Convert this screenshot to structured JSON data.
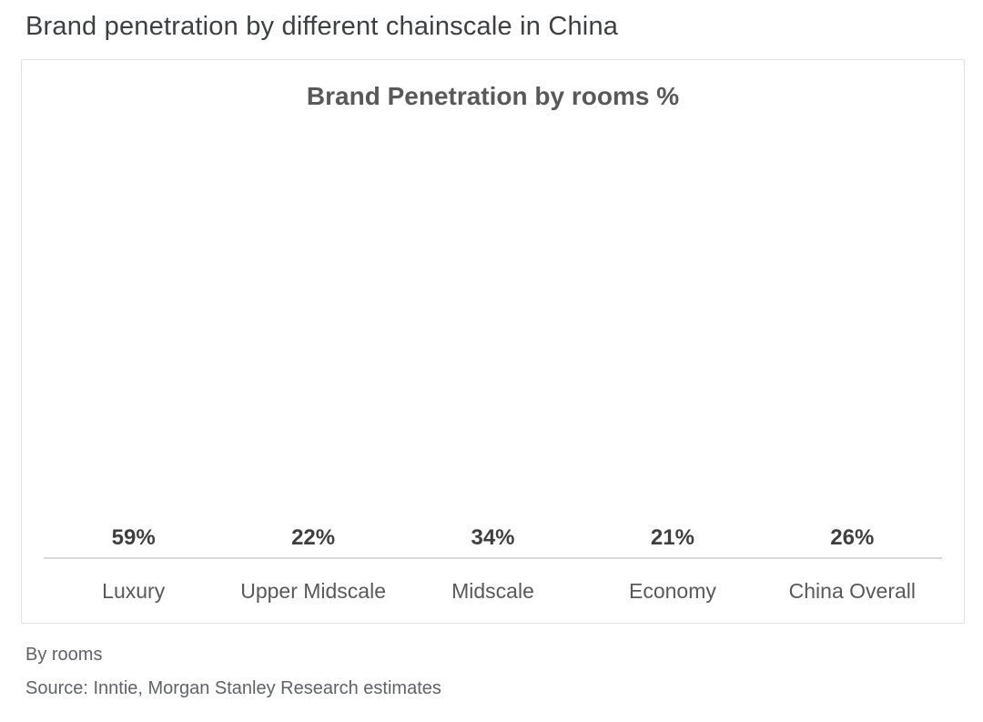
{
  "page": {
    "title": "Brand penetration by different chainscale in China"
  },
  "chart_data": {
    "type": "bar",
    "title": "Brand Penetration by rooms %",
    "categories": [
      "Luxury",
      "Upper Midscale",
      "Midscale",
      "Economy",
      "China Overall"
    ],
    "values": [
      59,
      22,
      34,
      21,
      26
    ],
    "value_labels": [
      "59%",
      "22%",
      "34%",
      "21%",
      "26%"
    ],
    "bar_colors": [
      "#0b7cb0",
      "#0b7cb0",
      "#0b7cb0",
      "#0b7cb0",
      "#0b3162"
    ],
    "xlabel": "",
    "ylabel": "",
    "ylim": [
      0,
      63
    ],
    "grid": false,
    "legend": false,
    "value_label_color": "#3f3f3f",
    "category_label_color": "#595959",
    "baseline_color": "#d9d9d9"
  },
  "footer": {
    "byline": "By rooms",
    "source": "Source: Inntie, Morgan Stanley Research estimates"
  }
}
